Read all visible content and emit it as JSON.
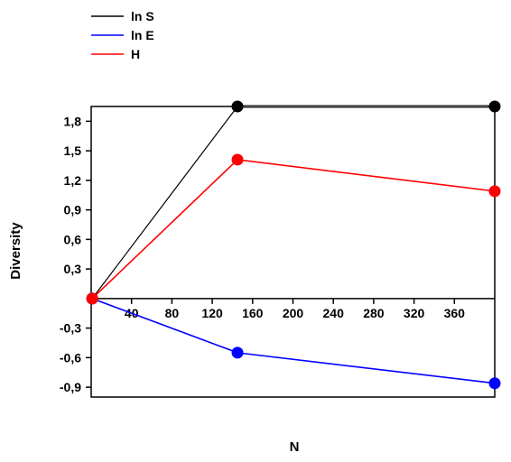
{
  "chart_data": {
    "type": "line",
    "xlabel": "N",
    "ylabel": "Diversity",
    "xlim": [
      0,
      400
    ],
    "ylim": [
      -1.0,
      1.95
    ],
    "x_ticks": [
      40,
      80,
      120,
      160,
      200,
      240,
      280,
      320,
      360
    ],
    "x_tick_labels": [
      "40",
      "80",
      "120",
      "160",
      "200",
      "240",
      "280",
      "320",
      "360"
    ],
    "y_ticks": [
      1.8,
      1.5,
      1.2,
      0.9,
      0.6,
      0.3,
      -0.3,
      -0.6,
      -0.9
    ],
    "y_tick_labels": [
      "1,8",
      "1,5",
      "1,2",
      "0,9",
      "0,6",
      "0,3",
      "-0,3",
      "-0,6",
      "-0,9"
    ],
    "grid": false,
    "legend_position": "top-left",
    "series": [
      {
        "name": "ln S",
        "color": "#000000",
        "x": [
          1,
          145,
          400
        ],
        "y": [
          0,
          1.95,
          1.95
        ]
      },
      {
        "name": "ln E",
        "color": "#0000ff",
        "x": [
          1,
          145,
          400
        ],
        "y": [
          0,
          -0.55,
          -0.86
        ]
      },
      {
        "name": "H",
        "color": "#ff0000",
        "x": [
          1,
          145,
          400
        ],
        "y": [
          0,
          1.41,
          1.09
        ]
      }
    ]
  }
}
